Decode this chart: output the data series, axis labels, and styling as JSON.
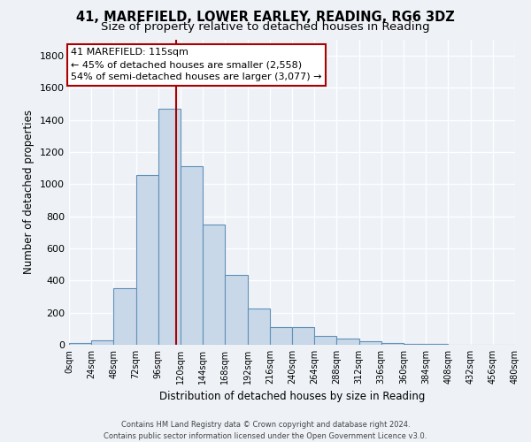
{
  "title": "41, MAREFIELD, LOWER EARLEY, READING, RG6 3DZ",
  "subtitle": "Size of property relative to detached houses in Reading",
  "xlabel": "Distribution of detached houses by size in Reading",
  "ylabel": "Number of detached properties",
  "bin_edges": [
    0,
    24,
    48,
    72,
    96,
    120,
    144,
    168,
    192,
    216,
    240,
    264,
    288,
    312,
    336,
    360,
    384,
    408,
    432,
    456,
    480
  ],
  "bar_values": [
    10,
    30,
    355,
    1060,
    1470,
    1115,
    750,
    435,
    225,
    110,
    110,
    55,
    40,
    20,
    10,
    5,
    5,
    0,
    0,
    0
  ],
  "bar_color": "#c8d8e8",
  "bar_edge_color": "#6090b8",
  "property_size": 115,
  "vline_color": "#aa0000",
  "annotation_text": "41 MAREFIELD: 115sqm\n← 45% of detached houses are smaller (2,558)\n54% of semi-detached houses are larger (3,077) →",
  "annotation_box_color": "#ffffff",
  "annotation_box_edge": "#aa0000",
  "ylim": [
    0,
    1900
  ],
  "yticks": [
    0,
    200,
    400,
    600,
    800,
    1000,
    1200,
    1400,
    1600,
    1800
  ],
  "tick_labels": [
    "0sqm",
    "24sqm",
    "48sqm",
    "72sqm",
    "96sqm",
    "120sqm",
    "144sqm",
    "168sqm",
    "192sqm",
    "216sqm",
    "240sqm",
    "264sqm",
    "288sqm",
    "312sqm",
    "336sqm",
    "360sqm",
    "384sqm",
    "408sqm",
    "432sqm",
    "456sqm",
    "480sqm"
  ],
  "footer_line1": "Contains HM Land Registry data © Crown copyright and database right 2024.",
  "footer_line2": "Contains public sector information licensed under the Open Government Licence v3.0.",
  "background_color": "#eef2f7",
  "grid_color": "#ffffff",
  "title_fontsize": 10.5,
  "subtitle_fontsize": 9.5,
  "annotation_fontsize": 8.0,
  "axis_bg_color": "#eef2f7"
}
